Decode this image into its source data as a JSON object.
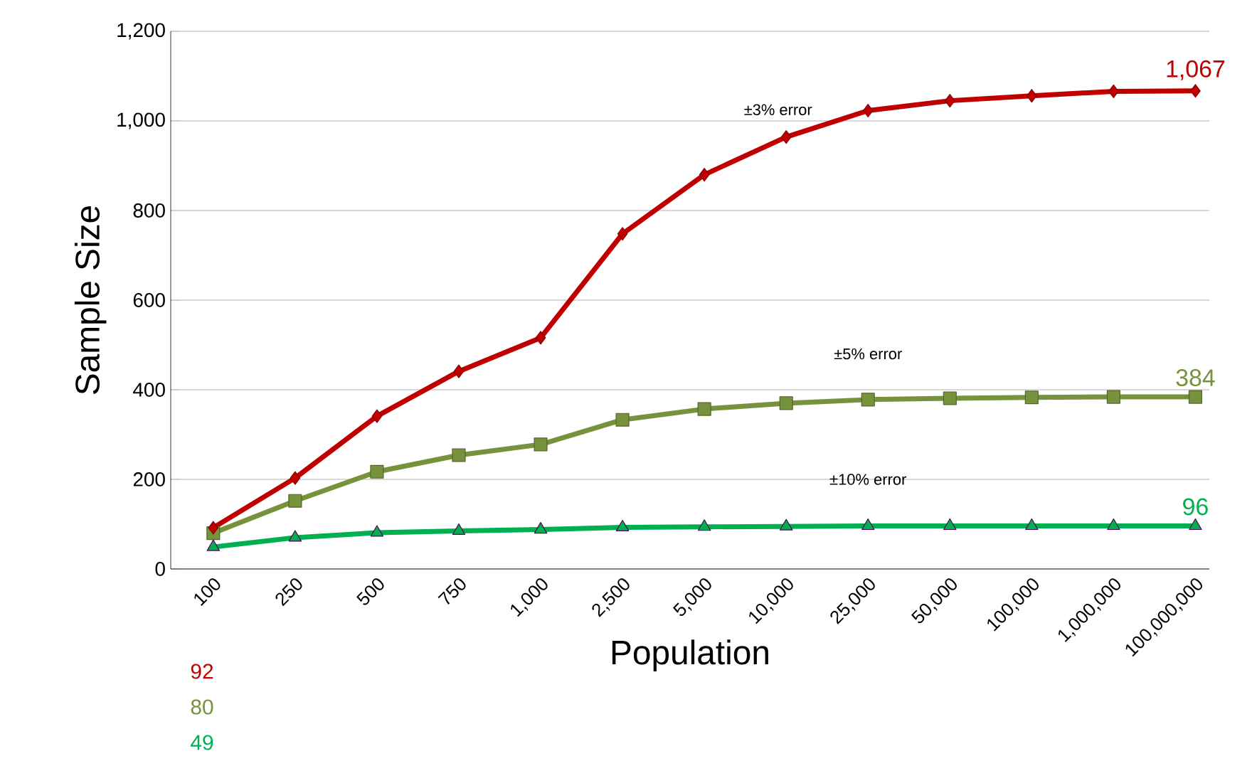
{
  "chart_data": {
    "type": "line",
    "xlabel": "Population",
    "ylabel": "Sample Size",
    "categories": [
      "100",
      "250",
      "500",
      "750",
      "1,000",
      "2,500",
      "5,000",
      "10,000",
      "25,000",
      "50,000",
      "100,000",
      "1,000,000",
      "100,000,000"
    ],
    "series": [
      {
        "name": "±3% error",
        "color": "#c00000",
        "marker": "diamond",
        "values": [
          92,
          203,
          341,
          441,
          516,
          748,
          880,
          964,
          1023,
          1045,
          1056,
          1066,
          1067
        ],
        "value_labels": [
          null,
          null,
          null,
          null,
          null,
          null,
          null,
          null,
          null,
          null,
          null,
          null,
          "1,067"
        ]
      },
      {
        "name": "±5% error",
        "color": "#76923c",
        "marker": "square",
        "values": [
          80,
          152,
          217,
          254,
          278,
          333,
          357,
          370,
          378,
          381,
          383,
          384,
          384
        ],
        "value_labels": [
          null,
          null,
          null,
          null,
          null,
          null,
          null,
          null,
          null,
          null,
          null,
          null,
          "384"
        ]
      },
      {
        "name": "±10% error",
        "color": "#00b050",
        "marker": "triangle",
        "values": [
          49,
          70,
          81,
          85,
          88,
          93,
          94,
          95,
          96,
          96,
          96,
          96,
          96
        ],
        "value_labels": [
          null,
          null,
          null,
          null,
          null,
          null,
          null,
          null,
          null,
          null,
          null,
          null,
          "96"
        ]
      }
    ],
    "annotations": [
      "92",
      "80",
      "49"
    ],
    "ylim": [
      0,
      1200
    ],
    "yticks": [
      {
        "value": 0,
        "label": "0"
      },
      {
        "value": 200,
        "label": "200"
      },
      {
        "value": 400,
        "label": "400"
      },
      {
        "value": 600,
        "label": "600"
      },
      {
        "value": 800,
        "label": "800"
      },
      {
        "value": 1000,
        "label": "1,000"
      },
      {
        "value": 1200,
        "label": "1,200"
      }
    ],
    "grid": "y",
    "legend": false,
    "line_style": "solid"
  }
}
